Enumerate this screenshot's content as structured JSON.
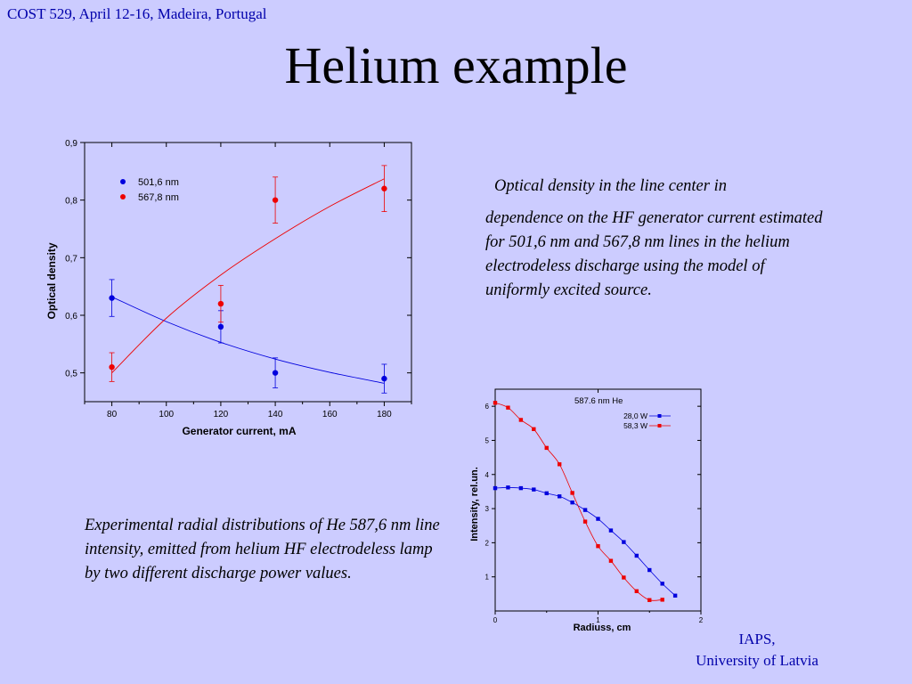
{
  "header": {
    "text": "COST 529, April 12-16, Madeira, Portugal"
  },
  "title": "Helium example",
  "caption1": {
    "first_line": "Optical density in the line center in",
    "rest": "dependence on the HF generator current estimated for 501,6 nm and 567,8 nm lines in the helium electrodeless discharge using the model of  uniformly excited source."
  },
  "caption2": "Experimental radial distributions of He 587,6 nm line intensity, emitted from helium HF electrodeless  lamp by two different discharge power values.",
  "footer": {
    "line1": "IAPS,",
    "line2": "University of Latvia"
  },
  "colors": {
    "background": "#ccccff",
    "blue": "#0000dd",
    "red": "#ee0000",
    "header": "#0000aa"
  },
  "chart_data": [
    {
      "type": "scatter",
      "xlabel": "Generator current, mA",
      "ylabel": "Optical density",
      "xlim": [
        70,
        190
      ],
      "ylim": [
        0.45,
        0.9
      ],
      "x_ticks": [
        "80",
        "100",
        "120",
        "140",
        "160",
        "180"
      ],
      "y_ticks": [
        "0,5",
        "0,6",
        "0,7",
        "0,8",
        "0,9"
      ],
      "legend_position": "top-left",
      "series": [
        {
          "name": "501,6 nm",
          "color": "#0000dd",
          "x": [
            80,
            120,
            140,
            180
          ],
          "y": [
            0.63,
            0.58,
            0.5,
            0.49
          ],
          "err": [
            0.032,
            0.028,
            0.026,
            0.025
          ],
          "fit_x": [
            80,
            100,
            120,
            140,
            160,
            180
          ],
          "fit_y": [
            0.632,
            0.589,
            0.553,
            0.524,
            0.501,
            0.482
          ]
        },
        {
          "name": "567,8 nm",
          "color": "#ee0000",
          "x": [
            80,
            120,
            140,
            180
          ],
          "y": [
            0.51,
            0.62,
            0.8,
            0.82
          ],
          "err": [
            0.025,
            0.032,
            0.04,
            0.04
          ],
          "fit_x": [
            80,
            100,
            120,
            140,
            160,
            180
          ],
          "fit_y": [
            0.5,
            0.595,
            0.67,
            0.733,
            0.789,
            0.837
          ]
        }
      ]
    },
    {
      "type": "line",
      "title": "587.6 nm He",
      "xlabel": "Radiuss, cm",
      "ylabel": "Intensity, rel.un.",
      "xlim": [
        0,
        2
      ],
      "ylim": [
        0,
        6.5
      ],
      "x_ticks": [
        "0",
        "1",
        "2"
      ],
      "y_ticks": [
        "1",
        "2",
        "3",
        "4",
        "5",
        "6"
      ],
      "legend_position": "top-right",
      "series": [
        {
          "name": "28,0 W",
          "color": "#0000dd",
          "x": [
            0.0,
            0.125,
            0.25,
            0.375,
            0.5,
            0.625,
            0.75,
            0.875,
            1.0,
            1.125,
            1.25,
            1.375,
            1.5,
            1.625,
            1.75
          ],
          "y": [
            3.6,
            3.62,
            3.6,
            3.56,
            3.45,
            3.36,
            3.18,
            2.96,
            2.7,
            2.36,
            2.02,
            1.62,
            1.2,
            0.8,
            0.45
          ]
        },
        {
          "name": "58,3 W",
          "color": "#ee0000",
          "x": [
            0.0,
            0.125,
            0.25,
            0.375,
            0.5,
            0.625,
            0.75,
            0.875,
            1.0,
            1.125,
            1.25,
            1.375,
            1.5,
            1.625
          ],
          "y": [
            6.1,
            5.96,
            5.6,
            5.33,
            4.78,
            4.3,
            3.46,
            2.62,
            1.9,
            1.47,
            0.98,
            0.58,
            0.32,
            0.33
          ]
        }
      ]
    }
  ]
}
